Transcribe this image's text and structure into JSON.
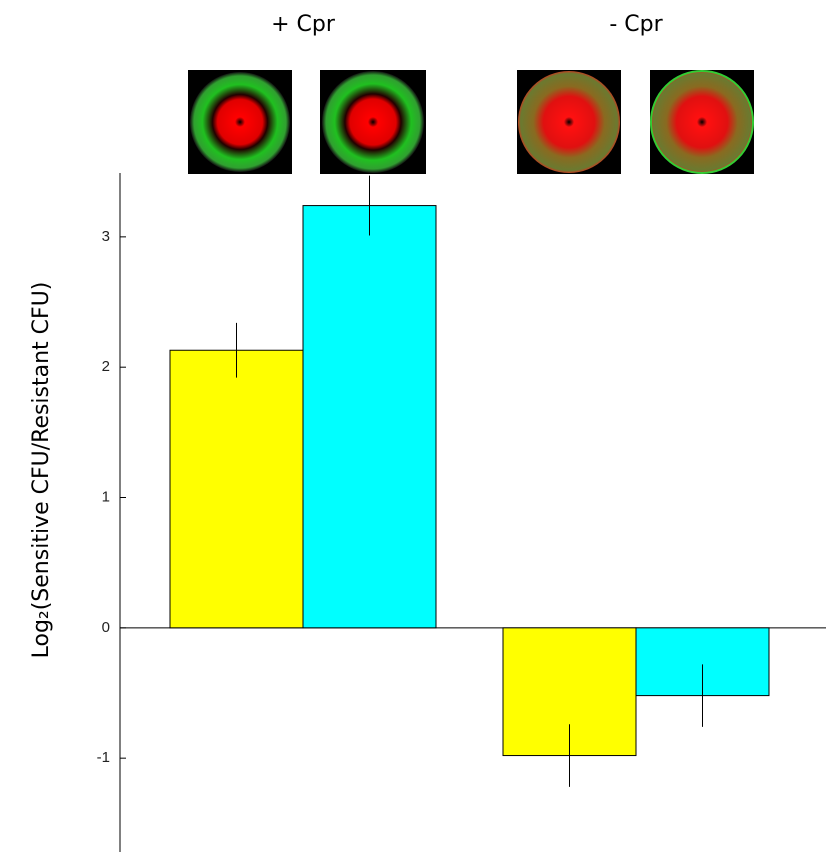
{
  "chart_data": {
    "type": "bar",
    "ylabel": "Log₂(Sensitive CFU/Resistant CFU)",
    "categories": [
      "+ Cpr",
      "- Cpr"
    ],
    "series": [
      {
        "color": "#ffff00",
        "values": [
          2.13,
          -0.98
        ],
        "errors": [
          0.21,
          0.24
        ]
      },
      {
        "color": "#00ffff",
        "values": [
          3.24,
          -0.52
        ],
        "errors": [
          0.23,
          0.24
        ]
      }
    ],
    "ylim": [
      -1.72,
      3.49
    ],
    "yticks": [
      -1,
      0,
      1,
      2,
      3
    ],
    "grid": false
  }
}
